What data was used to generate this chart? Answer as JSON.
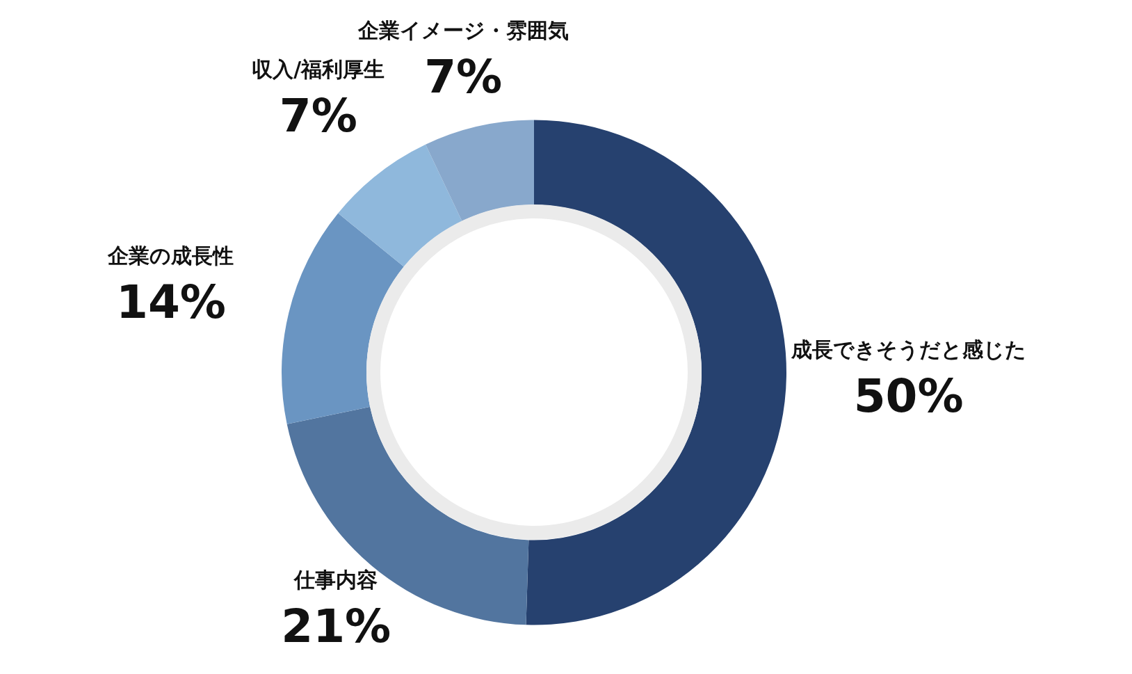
{
  "chart_data": {
    "type": "donut",
    "categories": [
      "成長できそうだと感じた",
      "仕事内容",
      "企業の成長性",
      "収入/福利厚生",
      "企業イメージ・雰囲気"
    ],
    "values": [
      50,
      21,
      14,
      7,
      7
    ],
    "value_labels": [
      "50%",
      "21%",
      "14%",
      "7%",
      "7%"
    ],
    "colors": [
      "#26416f",
      "#52759f",
      "#6a95c2",
      "#8fb8dc",
      "#88a8cc"
    ],
    "legend": false
  }
}
